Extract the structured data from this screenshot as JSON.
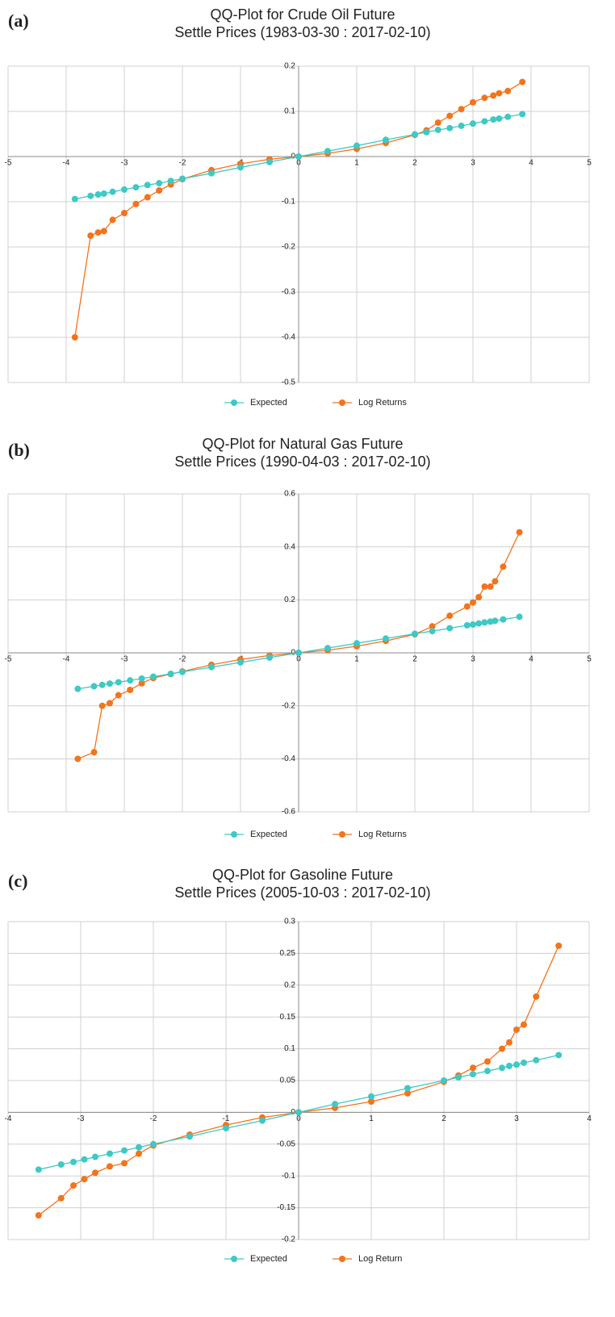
{
  "chart_data": [
    {
      "type": "line",
      "label": "(a)",
      "title": "QQ-Plot for Crude Oil Future",
      "subtitle": "Settle Prices (1983-03-30 : 2017-02-10)",
      "x": [
        -3.85,
        -3.58,
        -3.45,
        -3.35,
        -3.2,
        -3.0,
        -2.8,
        -2.6,
        -2.4,
        -2.2,
        -2.0,
        -1.5,
        -1.0,
        -0.5,
        0,
        0.5,
        1.0,
        1.5,
        2.0,
        2.2,
        2.4,
        2.6,
        2.8,
        3.0,
        3.2,
        3.35,
        3.45,
        3.6,
        3.85
      ],
      "series": [
        {
          "name": "Expected",
          "color": "#3ec9c6",
          "values": [
            -0.094,
            -0.087,
            -0.084,
            -0.082,
            -0.078,
            -0.073,
            -0.068,
            -0.063,
            -0.059,
            -0.054,
            -0.049,
            -0.037,
            -0.024,
            -0.012,
            0,
            0.012,
            0.024,
            0.037,
            0.049,
            0.054,
            0.059,
            0.063,
            0.068,
            0.073,
            0.078,
            0.082,
            0.084,
            0.088,
            0.094
          ]
        },
        {
          "name": "Log Returns",
          "color": "#f4731c",
          "values": [
            -0.4,
            -0.175,
            -0.168,
            -0.165,
            -0.14,
            -0.125,
            -0.105,
            -0.09,
            -0.075,
            -0.062,
            -0.05,
            -0.03,
            -0.016,
            -0.006,
            0,
            0.007,
            0.017,
            0.03,
            0.048,
            0.058,
            0.075,
            0.09,
            0.105,
            0.12,
            0.13,
            0.135,
            0.14,
            0.145,
            0.165
          ]
        }
      ],
      "xlim": [
        -5,
        5
      ],
      "xticks": [
        -5,
        -4,
        -3,
        -2,
        -1,
        0,
        1,
        2,
        3,
        4,
        5
      ],
      "ylim": [
        -0.5,
        0.2
      ],
      "yticks": [
        -0.5,
        -0.4,
        -0.3,
        -0.2,
        -0.1,
        0,
        0.1,
        0.2
      ],
      "grid": true
    },
    {
      "type": "line",
      "label": "(b)",
      "title": "QQ-Plot for Natural Gas Future",
      "subtitle": "Settle Prices (1990-04-03 : 2017-02-10)",
      "x": [
        -3.8,
        -3.52,
        -3.38,
        -3.25,
        -3.1,
        -2.9,
        -2.7,
        -2.5,
        -2.2,
        -2.0,
        -1.5,
        -1.0,
        -0.5,
        0,
        0.5,
        1.0,
        1.5,
        2.0,
        2.3,
        2.6,
        2.9,
        3.0,
        3.1,
        3.2,
        3.3,
        3.38,
        3.52,
        3.8
      ],
      "series": [
        {
          "name": "Expected",
          "color": "#3ec9c6",
          "values": [
            -0.136,
            -0.126,
            -0.121,
            -0.116,
            -0.111,
            -0.104,
            -0.097,
            -0.09,
            -0.079,
            -0.072,
            -0.054,
            -0.036,
            -0.018,
            0,
            0.018,
            0.036,
            0.054,
            0.072,
            0.082,
            0.093,
            0.104,
            0.107,
            0.111,
            0.115,
            0.118,
            0.121,
            0.126,
            0.136
          ]
        },
        {
          "name": "Log Returns",
          "color": "#f4731c",
          "values": [
            -0.4,
            -0.375,
            -0.2,
            -0.19,
            -0.16,
            -0.14,
            -0.115,
            -0.095,
            -0.08,
            -0.07,
            -0.045,
            -0.025,
            -0.01,
            0,
            0.01,
            0.025,
            0.045,
            0.07,
            0.1,
            0.14,
            0.175,
            0.19,
            0.21,
            0.25,
            0.25,
            0.27,
            0.325,
            0.455
          ]
        }
      ],
      "xlim": [
        -5,
        5
      ],
      "xticks": [
        -5,
        -4,
        -3,
        -2,
        -1,
        0,
        1,
        2,
        3,
        4,
        5
      ],
      "ylim": [
        -0.6,
        0.6
      ],
      "yticks": [
        -0.6,
        -0.4,
        -0.2,
        0,
        0.2,
        0.4,
        0.6
      ],
      "grid": true
    },
    {
      "type": "line",
      "label": "(c)",
      "title": "QQ-Plot for Gasoline Future",
      "subtitle": "Settle Prices (2005-10-03 : 2017-02-10)",
      "x": [
        -3.58,
        -3.27,
        -3.1,
        -2.95,
        -2.8,
        -2.6,
        -2.4,
        -2.2,
        -2.0,
        -1.5,
        -1.0,
        -0.5,
        0,
        0.5,
        1.0,
        1.5,
        2.0,
        2.2,
        2.4,
        2.6,
        2.8,
        2.9,
        3.0,
        3.1,
        3.27,
        3.58
      ],
      "series": [
        {
          "name": "Expected",
          "color": "#3ec9c6",
          "values": [
            -0.09,
            -0.082,
            -0.078,
            -0.074,
            -0.07,
            -0.065,
            -0.06,
            -0.055,
            -0.05,
            -0.038,
            -0.025,
            -0.013,
            0,
            0.013,
            0.025,
            0.038,
            0.05,
            0.055,
            0.06,
            0.065,
            0.07,
            0.073,
            0.075,
            0.078,
            0.082,
            0.09
          ]
        },
        {
          "name": "Log Return",
          "color": "#f4731c",
          "values": [
            -0.162,
            -0.135,
            -0.115,
            -0.105,
            -0.095,
            -0.085,
            -0.08,
            -0.065,
            -0.052,
            -0.035,
            -0.02,
            -0.008,
            0,
            0.007,
            0.017,
            0.03,
            0.048,
            0.058,
            0.07,
            0.08,
            0.1,
            0.11,
            0.13,
            0.138,
            0.182,
            0.262
          ]
        }
      ],
      "xlim": [
        -4,
        4
      ],
      "xticks": [
        -4,
        -3,
        -2,
        -1,
        0,
        1,
        2,
        3,
        4
      ],
      "ylim": [
        -0.2,
        0.3
      ],
      "yticks": [
        -0.2,
        -0.15,
        -0.1,
        -0.05,
        0,
        0.05,
        0.1,
        0.15,
        0.2,
        0.25,
        0.3
      ],
      "grid": true
    }
  ]
}
